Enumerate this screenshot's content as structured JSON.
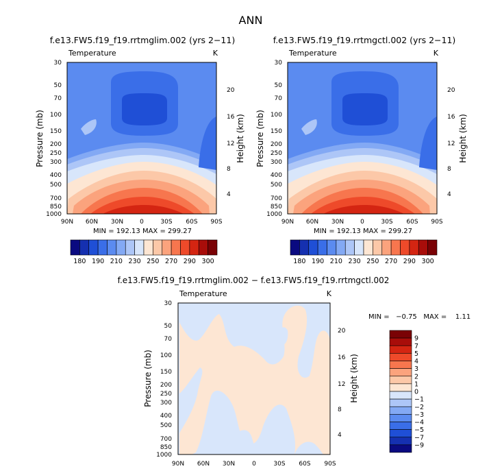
{
  "page": {
    "title": "ANN"
  },
  "chart_data": [
    {
      "type": "heatmap",
      "id": "p1",
      "title": "f.e13.FW5.f19_f19.rrtmglim.002 (yrs 2−11)",
      "variable": "Temperature",
      "units": "K",
      "ylabel": "Pressure (mb)",
      "ylabel_right": "Height (km)",
      "x_ticks": [
        "90N",
        "60N",
        "30N",
        "0",
        "30S",
        "60S",
        "90S"
      ],
      "y_ticks": [
        "30",
        "50",
        "70",
        "100",
        "150",
        "200",
        "250",
        "300",
        "400",
        "500",
        "700",
        "850",
        "1000"
      ],
      "height_ticks": [
        "20",
        "16",
        "12",
        "8",
        "4"
      ],
      "stats": "MIN = 192.13   MAX = 299.27",
      "min": 192.13,
      "max": 299.27,
      "colorbar": {
        "labels": [
          "180",
          "190",
          "210",
          "230",
          "250",
          "270",
          "290",
          "300"
        ],
        "colors": [
          "#0a0a80",
          "#1530b0",
          "#1f4fd6",
          "#3a6ee8",
          "#5b8bf0",
          "#83a9f4",
          "#adc6f7",
          "#d8e6fb",
          "#fde6d3",
          "#fcc8a8",
          "#fba37d",
          "#f7764e",
          "#ee4a2a",
          "#d42512",
          "#a80d0a",
          "#7a0205"
        ]
      }
    },
    {
      "type": "heatmap",
      "id": "p2",
      "title": "f.e13.FW5.f19_f19.rrtmgctl.002 (yrs 2−11)",
      "variable": "Temperature",
      "units": "K",
      "ylabel": "Pressure (mb)",
      "ylabel_right": "Height (km)",
      "x_ticks": [
        "90N",
        "60N",
        "30N",
        "0",
        "30S",
        "60S",
        "90S"
      ],
      "y_ticks": [
        "30",
        "50",
        "70",
        "100",
        "150",
        "200",
        "250",
        "300",
        "400",
        "500",
        "700",
        "850",
        "1000"
      ],
      "height_ticks": [
        "20",
        "16",
        "12",
        "8",
        "4"
      ],
      "stats": "MIN = 192.13   MAX = 299.27",
      "min": 192.13,
      "max": 299.27,
      "colorbar": {
        "labels": [
          "180",
          "190",
          "210",
          "230",
          "250",
          "270",
          "290",
          "300"
        ],
        "colors": [
          "#0a0a80",
          "#1530b0",
          "#1f4fd6",
          "#3a6ee8",
          "#5b8bf0",
          "#83a9f4",
          "#adc6f7",
          "#d8e6fb",
          "#fde6d3",
          "#fcc8a8",
          "#fba37d",
          "#f7764e",
          "#ee4a2a",
          "#d42512",
          "#a80d0a",
          "#7a0205"
        ]
      }
    },
    {
      "type": "heatmap",
      "id": "p3",
      "title": "f.e13.FW5.f19_f19.rrtmglim.002 − f.e13.FW5.f19_f19.rrtmgctl.002",
      "variable": "Temperature",
      "units": "K",
      "ylabel": "Pressure (mb)",
      "ylabel_right": "Height (km)",
      "x_ticks": [
        "90N",
        "60N",
        "30N",
        "0",
        "30S",
        "60S",
        "90S"
      ],
      "y_ticks": [
        "30",
        "50",
        "70",
        "100",
        "150",
        "200",
        "250",
        "300",
        "400",
        "500",
        "700",
        "850",
        "1000"
      ],
      "height_ticks": [
        "20",
        "16",
        "12",
        "8",
        "4"
      ],
      "stats": "MIN =   −0.75   MAX =    1.11",
      "min": -0.75,
      "max": 1.11,
      "colorbar": {
        "labels": [
          "9",
          "7",
          "5",
          "4",
          "3",
          "2",
          "1",
          "0",
          "−1",
          "−2",
          "−3",
          "−4",
          "−5",
          "−7",
          "−9"
        ],
        "colors": [
          "#7a0205",
          "#a80d0a",
          "#d42512",
          "#ee4a2a",
          "#f7764e",
          "#fba37d",
          "#fcc8a8",
          "#fde6d3",
          "#d8e6fb",
          "#adc6f7",
          "#83a9f4",
          "#5b8bf0",
          "#3a6ee8",
          "#1f4fd6",
          "#1530b0",
          "#0a0a80"
        ]
      }
    }
  ]
}
